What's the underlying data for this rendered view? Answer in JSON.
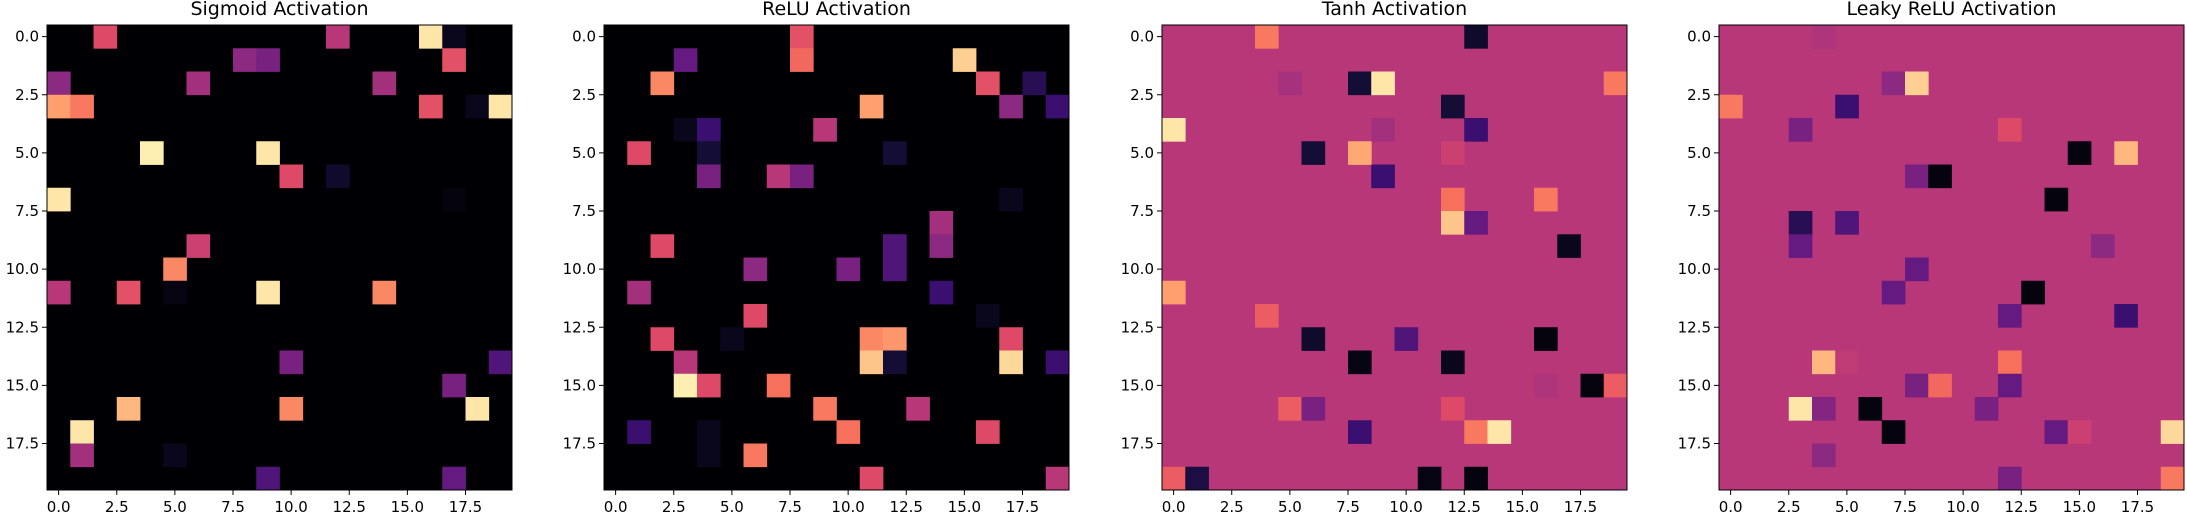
{
  "figure": {
    "panels": [
      "Sigmoid Activation",
      "ReLU Activation",
      "Tanh Activation",
      "Leaky ReLU Activation"
    ]
  },
  "chart_data": [
    {
      "type": "heatmap",
      "title": "Sigmoid Activation",
      "colormap": "magma",
      "background": 0,
      "grid": false,
      "xlim": [
        -0.5,
        19.5
      ],
      "ylim": [
        19.5,
        -0.5
      ],
      "xticks": [
        "0.0",
        "2.5",
        "5.0",
        "7.5",
        "10.0",
        "12.5",
        "15.0",
        "17.5"
      ],
      "yticks": [
        "0.0",
        "2.5",
        "5.0",
        "7.5",
        "10.0",
        "12.5",
        "15.0",
        "17.5"
      ],
      "cells": [
        [
          0,
          2,
          0.6
        ],
        [
          0,
          12,
          0.5
        ],
        [
          0,
          16,
          0.95
        ],
        [
          0,
          17,
          0.05
        ],
        [
          1,
          8,
          0.4
        ],
        [
          1,
          9,
          0.35
        ],
        [
          1,
          17,
          0.62
        ],
        [
          2,
          0,
          0.4
        ],
        [
          2,
          6,
          0.45
        ],
        [
          2,
          14,
          0.45
        ],
        [
          3,
          0,
          0.8
        ],
        [
          3,
          1,
          0.72
        ],
        [
          3,
          16,
          0.62
        ],
        [
          3,
          18,
          0.05
        ],
        [
          3,
          19,
          0.95
        ],
        [
          5,
          4,
          0.97
        ],
        [
          5,
          9,
          0.95
        ],
        [
          6,
          10,
          0.6
        ],
        [
          6,
          12,
          0.08
        ],
        [
          7,
          0,
          0.95
        ],
        [
          7,
          17,
          0.02
        ],
        [
          9,
          6,
          0.55
        ],
        [
          10,
          5,
          0.75
        ],
        [
          11,
          0,
          0.5
        ],
        [
          11,
          3,
          0.62
        ],
        [
          11,
          5,
          0.03
        ],
        [
          11,
          9,
          0.95
        ],
        [
          11,
          14,
          0.75
        ],
        [
          14,
          10,
          0.35
        ],
        [
          14,
          19,
          0.25
        ],
        [
          15,
          17,
          0.35
        ],
        [
          16,
          3,
          0.85
        ],
        [
          16,
          10,
          0.75
        ],
        [
          16,
          18,
          0.95
        ],
        [
          17,
          1,
          0.95
        ],
        [
          18,
          1,
          0.45
        ],
        [
          18,
          5,
          0.05
        ],
        [
          19,
          9,
          0.25
        ],
        [
          19,
          17,
          0.3
        ]
      ]
    },
    {
      "type": "heatmap",
      "title": "ReLU Activation",
      "colormap": "magma",
      "background": 0,
      "grid": false,
      "xlim": [
        -0.5,
        19.5
      ],
      "ylim": [
        19.5,
        -0.5
      ],
      "xticks": [
        "0.0",
        "2.5",
        "5.0",
        "7.5",
        "10.0",
        "12.5",
        "15.0",
        "17.5"
      ],
      "yticks": [
        "0.0",
        "2.5",
        "5.0",
        "7.5",
        "10.0",
        "12.5",
        "15.0",
        "17.5"
      ],
      "cells": [
        [
          0,
          8,
          0.62
        ],
        [
          1,
          3,
          0.3
        ],
        [
          1,
          8,
          0.68
        ],
        [
          1,
          15,
          0.9
        ],
        [
          2,
          2,
          0.75
        ],
        [
          2,
          16,
          0.62
        ],
        [
          2,
          18,
          0.15
        ],
        [
          3,
          11,
          0.8
        ],
        [
          3,
          17,
          0.4
        ],
        [
          3,
          19,
          0.2
        ],
        [
          4,
          3,
          0.05
        ],
        [
          4,
          4,
          0.2
        ],
        [
          4,
          9,
          0.5
        ],
        [
          5,
          1,
          0.6
        ],
        [
          5,
          4,
          0.1
        ],
        [
          5,
          12,
          0.1
        ],
        [
          6,
          4,
          0.35
        ],
        [
          6,
          7,
          0.5
        ],
        [
          6,
          8,
          0.35
        ],
        [
          7,
          17,
          0.05
        ],
        [
          8,
          14,
          0.45
        ],
        [
          9,
          2,
          0.6
        ],
        [
          9,
          12,
          0.25
        ],
        [
          9,
          14,
          0.4
        ],
        [
          10,
          6,
          0.4
        ],
        [
          10,
          10,
          0.35
        ],
        [
          10,
          12,
          0.25
        ],
        [
          11,
          1,
          0.45
        ],
        [
          11,
          14,
          0.2
        ],
        [
          12,
          6,
          0.6
        ],
        [
          12,
          16,
          0.05
        ],
        [
          13,
          2,
          0.6
        ],
        [
          13,
          5,
          0.05
        ],
        [
          13,
          11,
          0.75
        ],
        [
          13,
          12,
          0.78
        ],
        [
          13,
          17,
          0.6
        ],
        [
          14,
          3,
          0.5
        ],
        [
          14,
          11,
          0.88
        ],
        [
          14,
          12,
          0.1
        ],
        [
          14,
          17,
          0.92
        ],
        [
          14,
          19,
          0.2
        ],
        [
          15,
          3,
          0.97
        ],
        [
          15,
          4,
          0.6
        ],
        [
          15,
          7,
          0.7
        ],
        [
          16,
          9,
          0.72
        ],
        [
          16,
          13,
          0.5
        ],
        [
          17,
          1,
          0.2
        ],
        [
          17,
          4,
          0.05
        ],
        [
          17,
          10,
          0.7
        ],
        [
          17,
          16,
          0.6
        ],
        [
          18,
          4,
          0.05
        ],
        [
          18,
          6,
          0.72
        ],
        [
          19,
          11,
          0.6
        ],
        [
          19,
          19,
          0.5
        ]
      ]
    },
    {
      "type": "heatmap",
      "title": "Tanh Activation",
      "colormap": "magma",
      "background": 0.5,
      "grid": false,
      "xlim": [
        -0.5,
        19.5
      ],
      "ylim": [
        19.5,
        -0.5
      ],
      "xticks": [
        "0.0",
        "2.5",
        "5.0",
        "7.5",
        "10.0",
        "12.5",
        "15.0",
        "17.5"
      ],
      "yticks": [
        "0.0",
        "2.5",
        "5.0",
        "7.5",
        "10.0",
        "12.5",
        "15.0",
        "17.5"
      ],
      "cells": [
        [
          0,
          4,
          0.72
        ],
        [
          0,
          13,
          0.08
        ],
        [
          2,
          5,
          0.46
        ],
        [
          2,
          8,
          0.1
        ],
        [
          2,
          9,
          0.95
        ],
        [
          2,
          19,
          0.72
        ],
        [
          3,
          12,
          0.1
        ],
        [
          4,
          0,
          0.95
        ],
        [
          4,
          9,
          0.45
        ],
        [
          4,
          13,
          0.2
        ],
        [
          5,
          6,
          0.1
        ],
        [
          5,
          8,
          0.82
        ],
        [
          5,
          12,
          0.55
        ],
        [
          6,
          9,
          0.2
        ],
        [
          7,
          12,
          0.7
        ],
        [
          7,
          16,
          0.72
        ],
        [
          8,
          12,
          0.88
        ],
        [
          8,
          13,
          0.3
        ],
        [
          9,
          17,
          0.05
        ],
        [
          11,
          0,
          0.8
        ],
        [
          12,
          4,
          0.65
        ],
        [
          13,
          6,
          0.08
        ],
        [
          13,
          10,
          0.25
        ],
        [
          13,
          16,
          0.02
        ],
        [
          14,
          8,
          0.03
        ],
        [
          14,
          12,
          0.05
        ],
        [
          15,
          16,
          0.48
        ],
        [
          15,
          18,
          0.02
        ],
        [
          15,
          19,
          0.65
        ],
        [
          16,
          5,
          0.65
        ],
        [
          16,
          6,
          0.35
        ],
        [
          16,
          12,
          0.6
        ],
        [
          17,
          8,
          0.2
        ],
        [
          17,
          13,
          0.72
        ],
        [
          17,
          14,
          0.95
        ],
        [
          19,
          0,
          0.65
        ],
        [
          19,
          1,
          0.12
        ],
        [
          19,
          11,
          0.03
        ],
        [
          19,
          13,
          0.02
        ]
      ]
    },
    {
      "type": "heatmap",
      "title": "Leaky ReLU Activation",
      "colormap": "magma",
      "background": 0.5,
      "grid": false,
      "xlim": [
        -0.5,
        19.5
      ],
      "ylim": [
        19.5,
        -0.5
      ],
      "xticks": [
        "0.0",
        "2.5",
        "5.0",
        "7.5",
        "10.0",
        "12.5",
        "15.0",
        "17.5"
      ],
      "yticks": [
        "0.0",
        "2.5",
        "5.0",
        "7.5",
        "10.0",
        "12.5",
        "15.0",
        "17.5"
      ],
      "cells": [
        [
          0,
          4,
          0.48
        ],
        [
          2,
          7,
          0.4
        ],
        [
          2,
          8,
          0.9
        ],
        [
          3,
          0,
          0.72
        ],
        [
          3,
          5,
          0.2
        ],
        [
          4,
          3,
          0.35
        ],
        [
          4,
          12,
          0.6
        ],
        [
          5,
          15,
          0.02
        ],
        [
          5,
          17,
          0.85
        ],
        [
          6,
          8,
          0.35
        ],
        [
          6,
          9,
          0.02
        ],
        [
          7,
          14,
          0.02
        ],
        [
          8,
          3,
          0.15
        ],
        [
          8,
          5,
          0.25
        ],
        [
          9,
          3,
          0.3
        ],
        [
          9,
          16,
          0.4
        ],
        [
          10,
          8,
          0.3
        ],
        [
          11,
          7,
          0.3
        ],
        [
          11,
          13,
          0.02
        ],
        [
          12,
          12,
          0.3
        ],
        [
          12,
          17,
          0.2
        ],
        [
          14,
          4,
          0.85
        ],
        [
          14,
          5,
          0.52
        ],
        [
          14,
          12,
          0.7
        ],
        [
          15,
          8,
          0.35
        ],
        [
          15,
          9,
          0.68
        ],
        [
          15,
          12,
          0.3
        ],
        [
          16,
          3,
          0.95
        ],
        [
          16,
          4,
          0.38
        ],
        [
          16,
          6,
          0.02
        ],
        [
          16,
          11,
          0.35
        ],
        [
          17,
          7,
          0.02
        ],
        [
          17,
          14,
          0.3
        ],
        [
          17,
          15,
          0.55
        ],
        [
          17,
          19,
          0.92
        ],
        [
          18,
          4,
          0.4
        ],
        [
          19,
          12,
          0.35
        ],
        [
          19,
          19,
          0.72
        ]
      ]
    }
  ]
}
